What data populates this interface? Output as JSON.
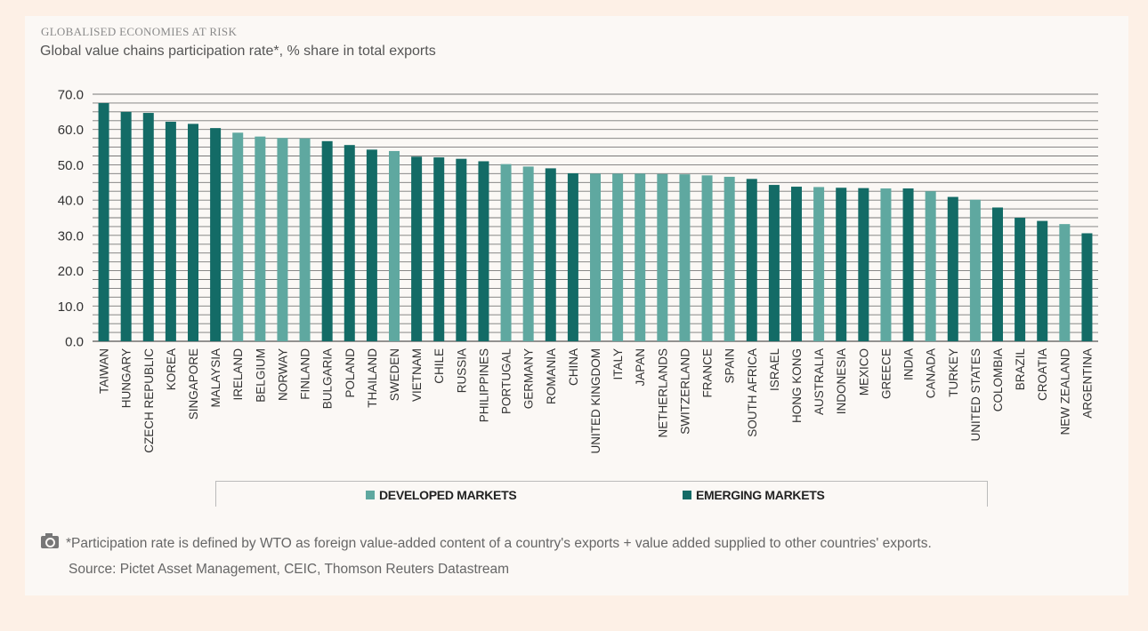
{
  "header": {
    "kicker": "GLOBALISED ECONOMIES AT RISK",
    "subtitle": "Global value chains participation rate*, % share in total exports"
  },
  "legend": {
    "developed_label": "DEVELOPED MARKETS",
    "emerging_label": "EMERGING MARKETS"
  },
  "footer": {
    "note": "*Participation rate is defined by WTO as foreign value-added content of a country's exports + value added supplied to other countries' exports.",
    "source": "Source: Pictet Asset Management, CEIC, Thomson Reuters Datastream"
  },
  "colors": {
    "developed": "#5fa8a0",
    "emerging": "#136b66",
    "grid": "#555555"
  },
  "chart_data": {
    "type": "bar",
    "title": "",
    "xlabel": "",
    "ylabel": "",
    "ylim": [
      0,
      70
    ],
    "yticks": [
      "0.0",
      "10.0",
      "20.0",
      "30.0",
      "40.0",
      "50.0",
      "60.0",
      "70.0"
    ],
    "grid": true,
    "legend_position": "bottom",
    "categories": [
      "TAIWAN",
      "HUNGARY",
      "CZECH REPUBLIC",
      "KOREA",
      "SINGAPORE",
      "MALAYSIA",
      "IRELAND",
      "BELGIUM",
      "NORWAY",
      "FINLAND",
      "BULGARIA",
      "POLAND",
      "THAILAND",
      "SWEDEN",
      "VIETNAM",
      "CHILE",
      "RUSSIA",
      "PHILIPPINES",
      "PORTUGAL",
      "GERMANY",
      "ROMANIA",
      "CHINA",
      "UNITED KINGDOM",
      "ITALY",
      "JAPAN",
      "NETHERLANDS",
      "SWITZERLAND",
      "FRANCE",
      "SPAIN",
      "SOUTH AFRICA",
      "ISRAEL",
      "HONG KONG",
      "AUSTRALIA",
      "INDONESIA",
      "MEXICO",
      "GREECE",
      "INDIA",
      "CANADA",
      "TURKEY",
      "UNITED STATES",
      "COLOMBIA",
      "BRAZIL",
      "CROATIA",
      "NEW ZEALAND",
      "ARGENTINA"
    ],
    "values": [
      67.5,
      65.0,
      64.7,
      62.2,
      61.6,
      60.4,
      59.1,
      58.0,
      57.6,
      57.5,
      56.7,
      55.6,
      54.3,
      53.9,
      52.3,
      52.1,
      51.7,
      51.0,
      50.2,
      49.5,
      49.0,
      47.6,
      47.5,
      47.5,
      47.5,
      47.4,
      47.3,
      47.0,
      46.6,
      46.0,
      44.3,
      43.8,
      43.7,
      43.5,
      43.4,
      43.3,
      43.3,
      42.5,
      40.9,
      40.1,
      37.9,
      35.0,
      34.1,
      33.2,
      30.6
    ],
    "groups": [
      "emerging",
      "emerging",
      "emerging",
      "emerging",
      "emerging",
      "emerging",
      "developed",
      "developed",
      "developed",
      "developed",
      "emerging",
      "emerging",
      "emerging",
      "developed",
      "emerging",
      "emerging",
      "emerging",
      "emerging",
      "developed",
      "developed",
      "emerging",
      "emerging",
      "developed",
      "developed",
      "developed",
      "developed",
      "developed",
      "developed",
      "developed",
      "emerging",
      "emerging",
      "emerging",
      "developed",
      "emerging",
      "emerging",
      "developed",
      "emerging",
      "developed",
      "emerging",
      "developed",
      "emerging",
      "emerging",
      "emerging",
      "developed",
      "emerging"
    ],
    "series": [
      {
        "name": "DEVELOPED MARKETS",
        "group": "developed"
      },
      {
        "name": "EMERGING MARKETS",
        "group": "emerging"
      }
    ]
  }
}
